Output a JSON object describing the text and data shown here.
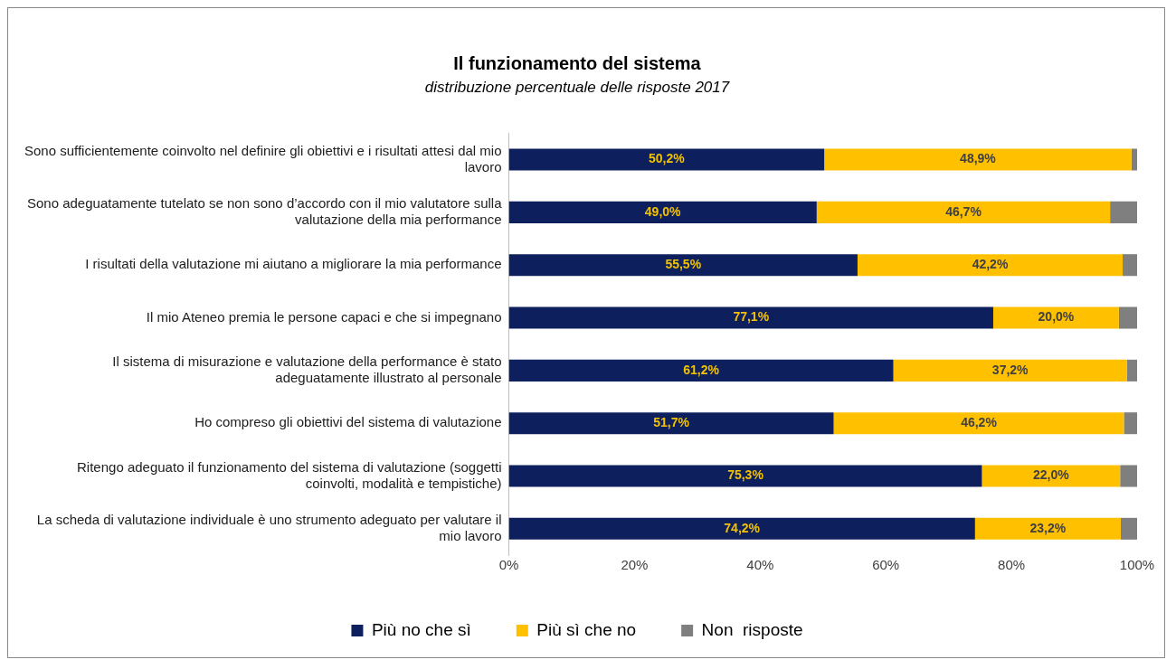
{
  "chart_data": {
    "type": "bar",
    "orientation": "horizontal",
    "stacked": true,
    "title": "Il funzionamento del sistema",
    "subtitle": "distribuzione percentuale delle risposte 2017",
    "categories": [
      "Sono sufficientemente coinvolto nel definire gli obiettivi e i risultati attesi dal mio lavoro",
      "Sono adeguatamente tutelato se non sono d’accordo con il mio valutatore sulla valutazione della mia performance",
      "I risultati della valutazione mi aiutano a migliorare la mia performance",
      "Il mio Ateneo premia le persone capaci e che si impegnano",
      "Il sistema di misurazione e valutazione della performance è stato adeguatamente illustrato al personale",
      "Ho compreso gli obiettivi del sistema di valutazione",
      "Ritengo adeguato il funzionamento del sistema di valutazione (soggetti coinvolti, modalità e tempistiche)",
      "La scheda di valutazione individuale è uno strumento adeguato per valutare il mio lavoro"
    ],
    "series": [
      {
        "name": "Più no che sì",
        "color": "#0d1f5c",
        "values": [
          50.2,
          49.0,
          55.5,
          77.1,
          61.2,
          51.7,
          75.3,
          74.2
        ],
        "value_labels": [
          "50,2%",
          "49,0%",
          "55,5%",
          "77,1%",
          "61,2%",
          "51,7%",
          "75,3%",
          "74,2%"
        ]
      },
      {
        "name": "Più sì che no",
        "color": "#ffc000",
        "values": [
          48.9,
          46.7,
          42.2,
          20.0,
          37.2,
          46.2,
          22.0,
          23.2
        ],
        "value_labels": [
          "48,9%",
          "46,7%",
          "42,2%",
          "20,0%",
          "37,2%",
          "46,2%",
          "22,0%",
          "23,2%"
        ]
      },
      {
        "name": "Non  risposte",
        "color": "#7f7f7f",
        "values": [
          0.9,
          4.3,
          2.3,
          2.9,
          1.6,
          2.1,
          2.7,
          2.6
        ]
      }
    ],
    "xlim": [
      0,
      100
    ],
    "xticks": [
      {
        "value": 0,
        "label": "0%"
      },
      {
        "value": 20,
        "label": "20%"
      },
      {
        "value": 40,
        "label": "40%"
      },
      {
        "value": 60,
        "label": "60%"
      },
      {
        "value": 80,
        "label": "80%"
      },
      {
        "value": 100,
        "label": "100%"
      }
    ],
    "grid": false,
    "legend": "bottom"
  }
}
